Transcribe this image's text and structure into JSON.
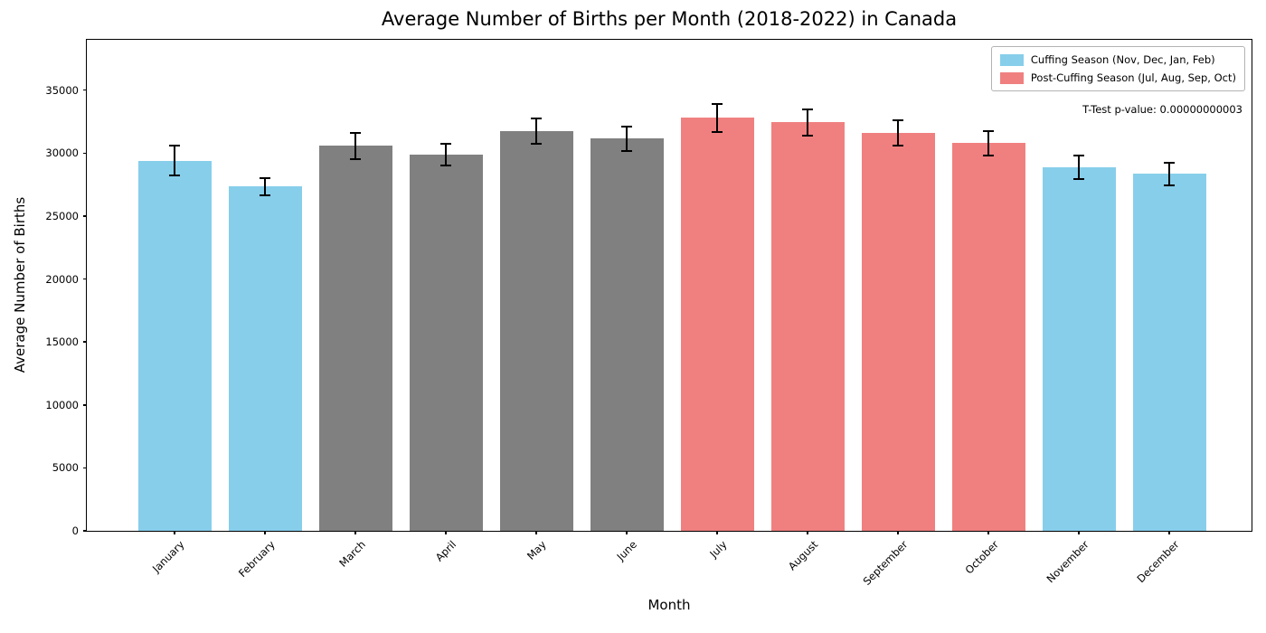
{
  "chart_data": {
    "type": "bar",
    "title": "Average Number of Births per Month (2018-2022) in Canada",
    "xlabel": "Month",
    "ylabel": "Average Number of Births",
    "annotation": "T-Test p-value: 0.00000000003",
    "categories": [
      "January",
      "February",
      "March",
      "April",
      "May",
      "June",
      "July",
      "August",
      "September",
      "October",
      "November",
      "December"
    ],
    "values": [
      29400,
      27330,
      30570,
      29900,
      31720,
      31140,
      32790,
      32450,
      31620,
      30780,
      28870,
      28350
    ],
    "errors": [
      1200,
      700,
      1050,
      850,
      1000,
      1000,
      1100,
      1050,
      1000,
      1000,
      950,
      900
    ],
    "groups": [
      "cuffing",
      "cuffing",
      "neutral",
      "neutral",
      "neutral",
      "neutral",
      "post_cuffing",
      "post_cuffing",
      "post_cuffing",
      "post_cuffing",
      "cuffing",
      "cuffing"
    ],
    "group_colors": {
      "cuffing": "#87CEEB",
      "neutral": "#808080",
      "post_cuffing": "#F08080"
    },
    "error_bar_color": "#000000",
    "yticks": [
      0,
      5000,
      10000,
      15000,
      20000,
      25000,
      30000,
      35000
    ],
    "ylim": [
      0,
      39000
    ],
    "grid": false,
    "legend_position": "upper right",
    "legend": [
      {
        "label": "Cuffing Season (Nov, Dec, Jan, Feb)",
        "color": "#87CEEB"
      },
      {
        "label": "Post-Cuffing Season (Jul, Aug, Sep, Oct)",
        "color": "#F08080"
      }
    ]
  }
}
